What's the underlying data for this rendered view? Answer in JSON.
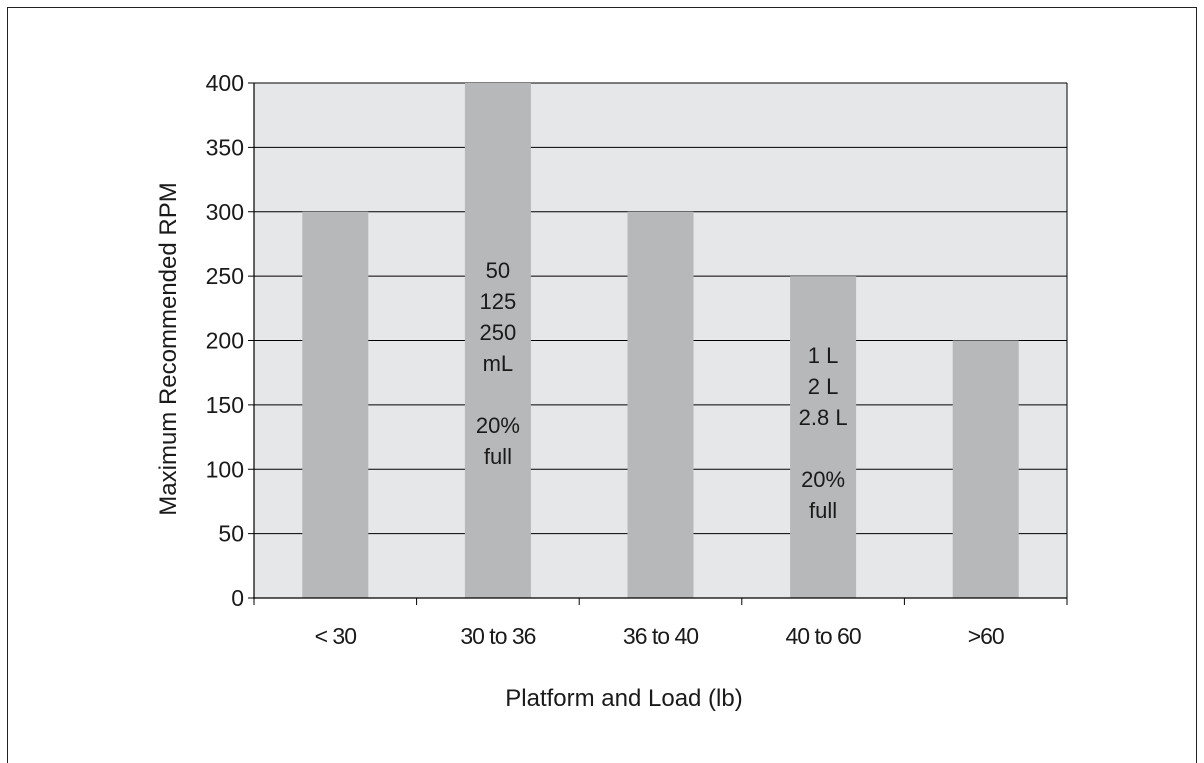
{
  "chart_data": {
    "type": "bar",
    "title": "",
    "xlabel": "Platform and Load (lb)",
    "ylabel": "Maximum Recommended RPM",
    "categories": [
      "< 30",
      "30 to 36",
      "36 to 40",
      "40 to 60",
      ">60"
    ],
    "values": [
      300,
      400,
      300,
      250,
      200
    ],
    "ylim": [
      0,
      400
    ],
    "yticks": [
      0,
      50,
      100,
      150,
      200,
      250,
      300,
      350,
      400
    ],
    "grid": true,
    "legend": "none",
    "colors": {
      "plot_background": "#e6e7e9",
      "bar": "#b7b8ba",
      "gridline": "#000000"
    },
    "annotations": [
      {
        "category_index": 1,
        "lines": [
          "50",
          "125",
          "250",
          "mL",
          "",
          "20%",
          "full"
        ]
      },
      {
        "category_index": 3,
        "lines": [
          "1 L",
          "2 L",
          "2.8 L",
          "",
          "20%",
          "full"
        ]
      }
    ]
  }
}
